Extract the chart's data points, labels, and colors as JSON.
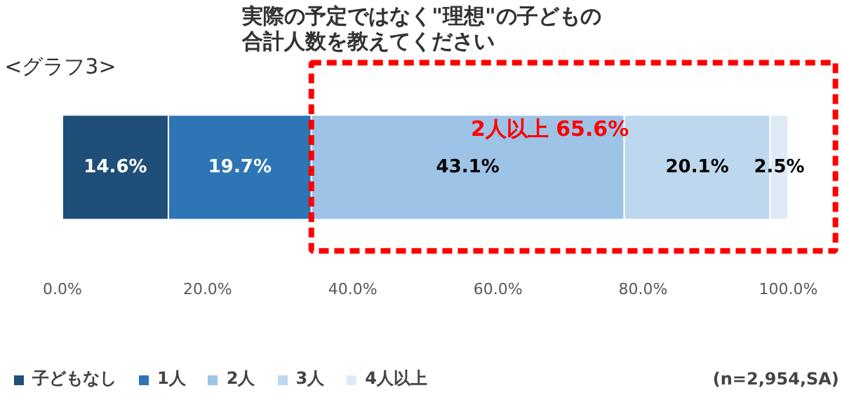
{
  "chart_data": {
    "type": "bar",
    "orientation": "horizontal",
    "stacked": true,
    "title": "実際の予定ではなく\"理想\"の子どもの合計人数を教えてください",
    "categories": [
      null
    ],
    "series": [
      {
        "name": "子どもなし",
        "color": "#1f4e79",
        "values": [
          14.6
        ],
        "value_labels": [
          "14.6%"
        ]
      },
      {
        "name": "1人",
        "color": "#2e75b6",
        "values": [
          19.7
        ],
        "value_labels": [
          "19.7%"
        ]
      },
      {
        "name": "2人",
        "color": "#9dc3e6",
        "values": [
          43.1
        ],
        "value_labels": [
          "43.1%"
        ]
      },
      {
        "name": "3人",
        "color": "#bdd7ee",
        "values": [
          20.1
        ],
        "value_labels": [
          "20.1%"
        ]
      },
      {
        "name": "4人以上",
        "color": "#deebf7",
        "values": [
          2.5
        ],
        "value_labels": [
          "2.5%"
        ]
      }
    ],
    "xlim": [
      0,
      100
    ],
    "xticks": [
      {
        "value": 0,
        "label": "0.0%"
      },
      {
        "value": 20,
        "label": "20.0%"
      },
      {
        "value": 40,
        "label": "40.0%"
      },
      {
        "value": 60,
        "label": "60.0%"
      },
      {
        "value": 80,
        "label": "80.0%"
      },
      {
        "value": 100,
        "label": "100.0%"
      }
    ],
    "annotations": [
      "<グラフ3>",
      "(n=2,954,SA)",
      "2人以上 65.6%"
    ],
    "legend": "bottom"
  }
}
